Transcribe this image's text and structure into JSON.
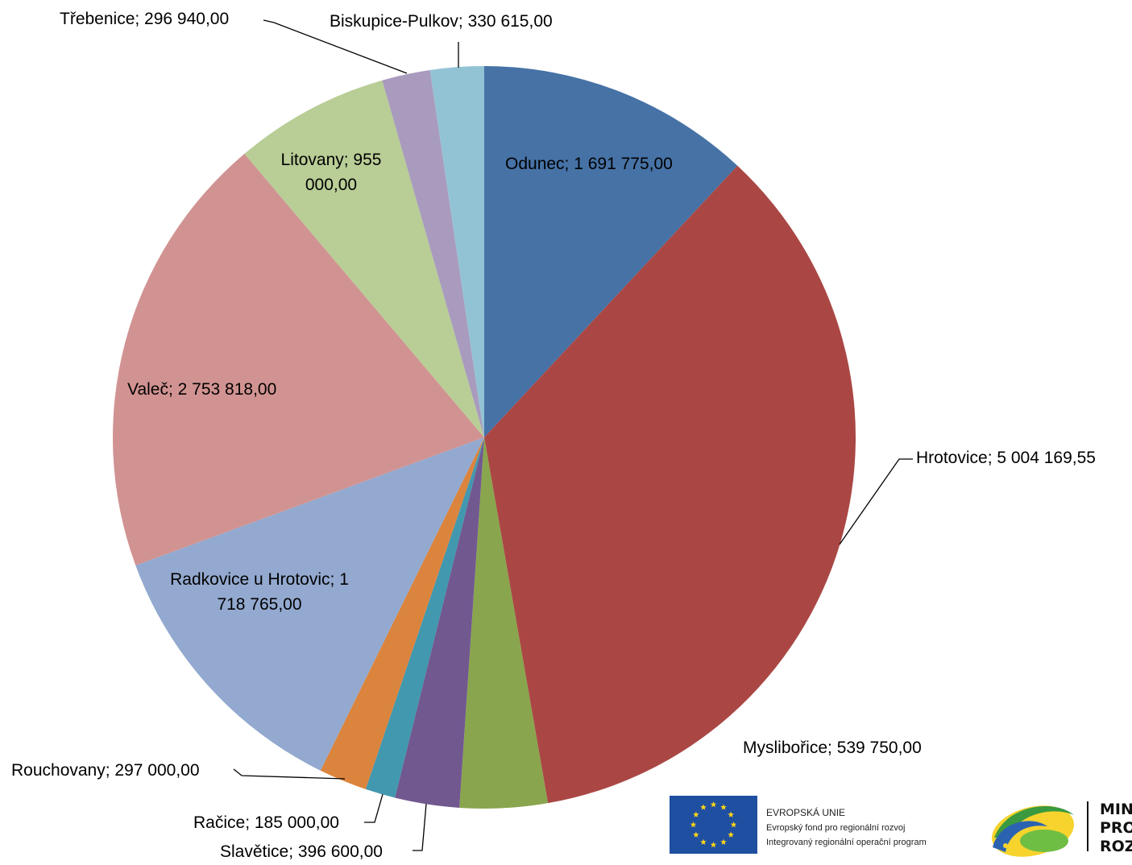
{
  "chart_data": {
    "type": "pie",
    "title": "",
    "slices": [
      {
        "name": "Odunec",
        "value": 1691775.0,
        "label": "Odunec;  1 691 775,00",
        "color": "#4672A6"
      },
      {
        "name": "Hrotovice",
        "value": 5004169.55,
        "label": "Hrotovice;  5 004 169,55",
        "color": "#AA4744"
      },
      {
        "name": "Myslibořice",
        "value": 539750.0,
        "label": "Myslibořice;  539 750,00",
        "color": "#89A54E"
      },
      {
        "name": "Slavětice",
        "value": 396600.0,
        "label": "Slavětice;  396 600,00",
        "color": "#71588F"
      },
      {
        "name": "Račice",
        "value": 185000.0,
        "label": "Račice;  185 000,00",
        "color": "#4198AF"
      },
      {
        "name": "Rouchovany",
        "value": 297000.0,
        "label": "Rouchovany;  297 000,00",
        "color": "#DB843D"
      },
      {
        "name": "Radkovice u Hrotovic",
        "value": 1718765.0,
        "label_lines": [
          "Radkovice u Hrotovic;  1",
          "718 765,00"
        ],
        "color": "#93A9CF"
      },
      {
        "name": "Valeč",
        "value": 2753818.0,
        "label": "Valeč;  2 753 818,00",
        "color": "#D19392"
      },
      {
        "name": "Litovany",
        "value": 955000.0,
        "label_lines": [
          "Litovany;  955",
          "000,00"
        ],
        "color": "#B9CD96"
      },
      {
        "name": "Třebenice",
        "value": 296940.0,
        "label": "Třebenice;  296 940,00",
        "color": "#A99BBD"
      },
      {
        "name": "Biskupice-Pulkov",
        "value": 330615.0,
        "label": "Biskupice-Pulkov;  330 615,00",
        "color": "#92C3D4"
      }
    ]
  },
  "footer": {
    "eu_line1": "EVROPSKÁ UNIE",
    "eu_line2": "Evropský fond pro regionální rozvoj",
    "eu_line3": "Integrovaný regionální operační program",
    "mmr_line1": "MIN",
    "mmr_line2": "PRO",
    "mmr_line3": "ROZ"
  }
}
